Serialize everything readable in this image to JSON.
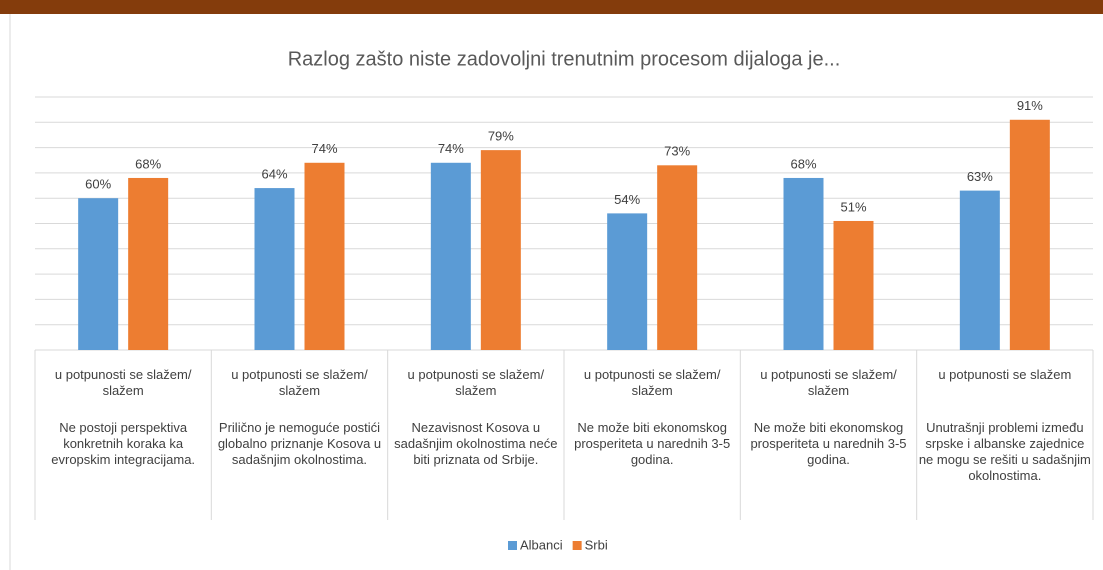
{
  "chart_data": {
    "type": "bar",
    "title": "Razlog zašto niste zadovoljni trenutnim procesom dijaloga je...",
    "categories": [
      "u potpunosti se slažem/ slažem",
      "u potpunosti se slažem/ slažem",
      "u potpunosti se slažem/ slažem",
      "u potpunosti se slažem/ slažem",
      "u potpunosti se slažem/ slažem",
      "u potpunosti se slažem"
    ],
    "category_groups": [
      "Ne postoji perspektiva konkretnih koraka ka evropskim integracijama.",
      "Prilično je nemoguće postići globalno priznanje Kosova u sadašnjim okolnostima.",
      "Nezavisnost Kosova u sadašnjim okolnostima neće biti priznata od Srbije.",
      "Ne može biti ekonomskog prosperiteta u narednih 3-5 godina.",
      "Ne može biti ekonomskog prosperiteta u narednih 3-5 godina.",
      "Unutrašnji problemi između srpske i albanske zajednice ne mogu se rešiti u sadašnjim okolnostima."
    ],
    "series": [
      {
        "name": "Albanci",
        "color": "#5b9bd5",
        "values": [
          60,
          64,
          74,
          54,
          68,
          63
        ],
        "value_labels": [
          "60%",
          "64%",
          "74%",
          "54%",
          "68%",
          "63%"
        ]
      },
      {
        "name": "Srbi",
        "color": "#ed7d31",
        "values": [
          68,
          74,
          79,
          73,
          51,
          91
        ],
        "value_labels": [
          "68%",
          "74%",
          "79%",
          "73%",
          "51%",
          "91%"
        ]
      }
    ],
    "ylim": [
      0,
      100
    ],
    "yticks": [
      0,
      10,
      20,
      30,
      40,
      50,
      60,
      70,
      80,
      90,
      100
    ],
    "grid": true,
    "legend": "bottom"
  }
}
